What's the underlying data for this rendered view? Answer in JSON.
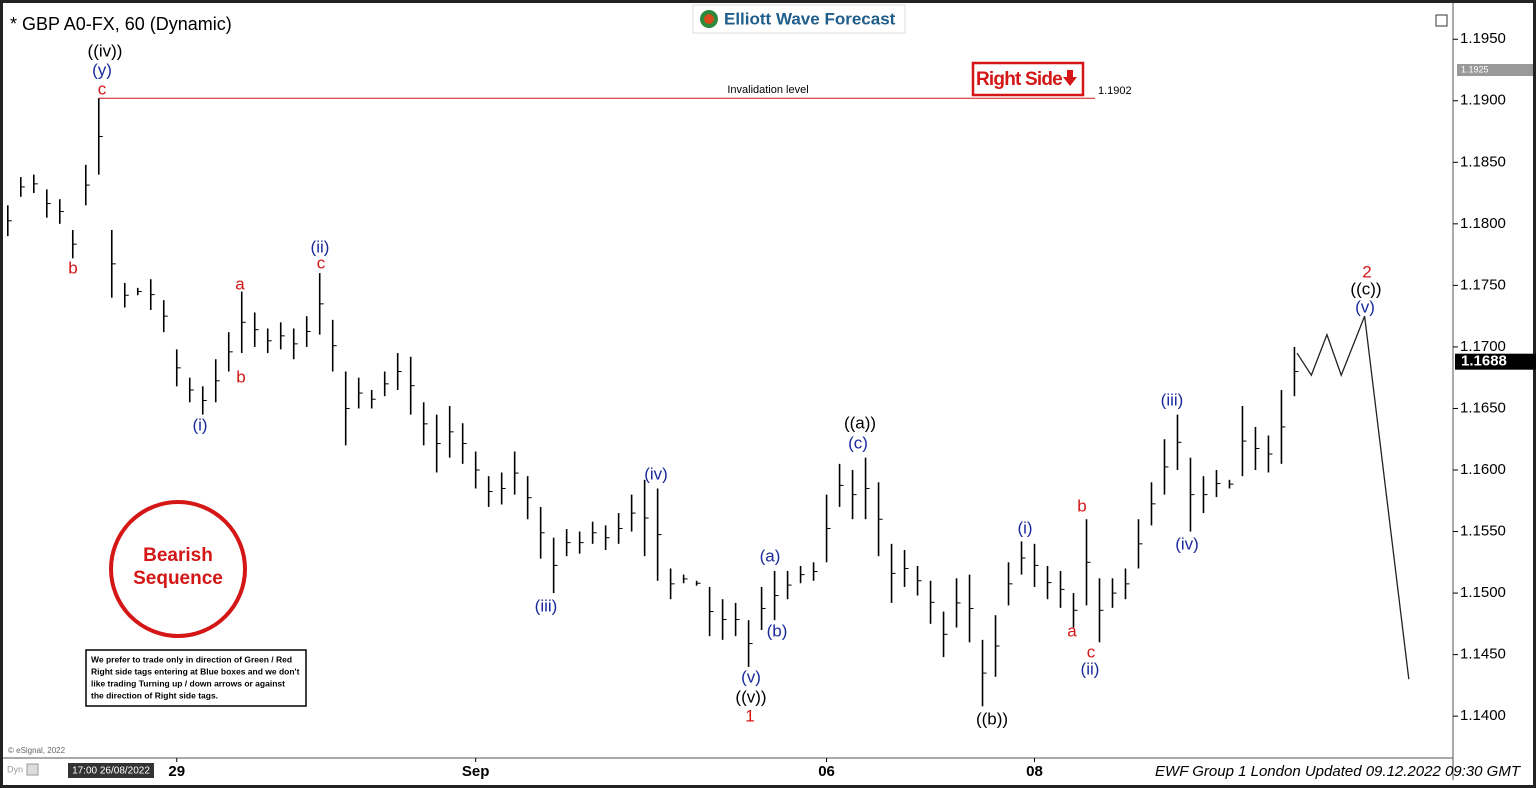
{
  "chart_data": {
    "type": "price-bars",
    "title": "* GBP A0-FX, 60 (Dynamic)",
    "brand": "Elliott Wave Forecast",
    "color": "#000000",
    "xlim": [
      -0.6,
      111.2
    ],
    "ylim": [
      1.1366,
      1.1977
    ],
    "xticks": [
      {
        "value": 13,
        "label": "29"
      },
      {
        "value": 36,
        "label": "Sep"
      },
      {
        "value": 63,
        "label": "06"
      },
      {
        "value": 79,
        "label": "08"
      }
    ],
    "yticks": [
      {
        "value": 1.195,
        "label": "1.1950"
      },
      {
        "value": 1.19,
        "label": "1.1900"
      },
      {
        "value": 1.185,
        "label": "1.1850"
      },
      {
        "value": 1.18,
        "label": "1.1800"
      },
      {
        "value": 1.175,
        "label": "1.1750"
      },
      {
        "value": 1.17,
        "label": "1.1700"
      },
      {
        "value": 1.165,
        "label": "1.1650"
      },
      {
        "value": 1.16,
        "label": "1.1600"
      },
      {
        "value": 1.155,
        "label": "1.1550"
      },
      {
        "value": 1.15,
        "label": "1.1500"
      },
      {
        "value": 1.145,
        "label": "1.1450"
      },
      {
        "value": 1.14,
        "label": "1.1400"
      }
    ],
    "grid": false,
    "high": [
      1.1815,
      1.1838,
      1.184,
      1.1828,
      1.182,
      1.1795,
      1.1848,
      1.1902,
      1.1795,
      1.1752,
      1.1748,
      1.1755,
      1.1738,
      1.1698,
      1.1675,
      1.1668,
      1.169,
      1.1712,
      1.1745,
      1.1728,
      1.1715,
      1.172,
      1.1715,
      1.1725,
      1.176,
      1.1722,
      1.168,
      1.1675,
      1.1665,
      1.168,
      1.1695,
      1.1692,
      1.1655,
      1.1645,
      1.1652,
      1.1638,
      1.1615,
      1.1595,
      1.1598,
      1.1615,
      1.1595,
      1.157,
      1.1545,
      1.1552,
      1.155,
      1.1558,
      1.1555,
      1.1565,
      1.158,
      1.1592,
      1.1585,
      1.152,
      1.1515,
      1.151,
      1.1505,
      1.1495,
      1.1492,
      1.1478,
      1.1505,
      1.1518,
      1.1518,
      1.1522,
      1.1525,
      1.158,
      1.1605,
      1.16,
      1.161,
      1.159,
      1.154,
      1.1535,
      1.1522,
      1.151,
      1.1485,
      1.1512,
      1.1515,
      1.1462,
      1.1482,
      1.1525,
      1.1542,
      1.154,
      1.1522,
      1.1518,
      1.15,
      1.156,
      1.1512,
      1.1512,
      1.152,
      1.156,
      1.159,
      1.1625,
      1.1645,
      1.161,
      1.1595,
      1.16,
      1.1592,
      1.1652,
      1.1635,
      1.1628,
      1.1665,
      1.17
    ],
    "low": [
      1.179,
      1.1822,
      1.1825,
      1.1805,
      1.18,
      1.1772,
      1.1815,
      1.184,
      1.174,
      1.1732,
      1.1742,
      1.173,
      1.1712,
      1.1668,
      1.1655,
      1.1645,
      1.1655,
      1.168,
      1.1695,
      1.17,
      1.1695,
      1.1698,
      1.169,
      1.17,
      1.171,
      1.168,
      1.162,
      1.165,
      1.165,
      1.166,
      1.1665,
      1.1645,
      1.162,
      1.1598,
      1.161,
      1.1605,
      1.1585,
      1.157,
      1.1572,
      1.158,
      1.156,
      1.1528,
      1.15,
      1.153,
      1.1532,
      1.154,
      1.1535,
      1.154,
      1.155,
      1.153,
      1.151,
      1.1495,
      1.1508,
      1.1506,
      1.1465,
      1.1462,
      1.1465,
      1.144,
      1.147,
      1.1478,
      1.1495,
      1.1508,
      1.151,
      1.1525,
      1.157,
      1.156,
      1.156,
      1.153,
      1.1492,
      1.1505,
      1.1498,
      1.1475,
      1.1448,
      1.1472,
      1.146,
      1.1408,
      1.1432,
      1.149,
      1.1515,
      1.1505,
      1.1495,
      1.1488,
      1.1472,
      1.149,
      1.146,
      1.1488,
      1.1495,
      1.152,
      1.1555,
      1.158,
      1.16,
      1.155,
      1.1565,
      1.1578,
      1.1585,
      1.1595,
      1.16,
      1.1598,
      1.1605,
      1.166
    ],
    "projection": {
      "x": [
        99.2,
        100.3,
        101.5,
        102.6,
        104.4,
        107.8
      ],
      "y": [
        1.1695,
        1.1677,
        1.171,
        1.1677,
        1.1725,
        1.143
      ]
    },
    "invalidation": {
      "label": "Invalidation level",
      "value": 1.1902
    },
    "last_price": 1.1688,
    "high_marker": 1.1925,
    "right_side": "Right Side",
    "bearish": [
      "Bearish",
      "Sequence"
    ],
    "note": [
      "We prefer to trade only in direction of Green / Red",
      "Right side tags entering at Blue boxes and we don't",
      "like trading Turning up / down arrows or against",
      "the direction of Right side tags."
    ],
    "annotations": [
      "((iv))",
      "(y)",
      "c",
      "b",
      "(i)",
      "a",
      "b",
      "(ii)",
      "c",
      "(iii)",
      "(iv)",
      "(a)",
      "(b)",
      "(v)",
      "((v))",
      "1",
      "((a))",
      "(c)",
      "((b))",
      "(i)",
      "b",
      "a",
      "c",
      "(ii)",
      "(iii)",
      "(iv)",
      "2",
      "((c))",
      "(v)"
    ],
    "copyright": "© eSignal, 2022",
    "start_time": "17:00 26/08/2022",
    "dyn": "Dyn",
    "footer": "EWF Group 1 London Updated 09.12.2022 09:30 GMT"
  }
}
